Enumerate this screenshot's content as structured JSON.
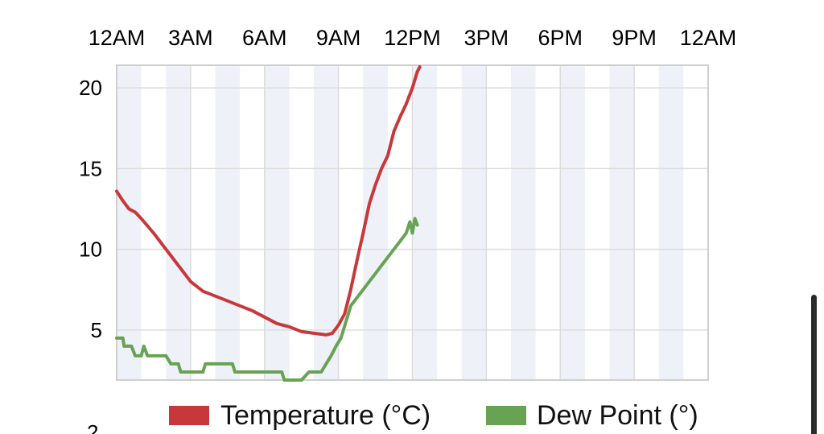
{
  "chart_data": {
    "type": "line",
    "x_tick_labels": [
      "12AM",
      "3AM",
      "6AM",
      "9AM",
      "12PM",
      "3PM",
      "6PM",
      "9PM",
      "12AM"
    ],
    "x_range_hours": [
      0,
      24
    ],
    "y_tick_labels": [
      "20",
      "15",
      "10",
      "5"
    ],
    "y_ticks": [
      20,
      15,
      10,
      5
    ],
    "ylim": [
      1.9,
      21.4
    ],
    "grid": true,
    "legend_placement": "bottom",
    "series": [
      {
        "name": "Temperature (°C)",
        "color": "#c8383a",
        "points": [
          [
            0.0,
            13.6
          ],
          [
            0.25,
            13.0
          ],
          [
            0.5,
            12.5
          ],
          [
            0.75,
            12.3
          ],
          [
            1.0,
            11.9
          ],
          [
            1.5,
            11.0
          ],
          [
            2.0,
            10.0
          ],
          [
            2.5,
            9.0
          ],
          [
            3.0,
            8.0
          ],
          [
            3.5,
            7.4
          ],
          [
            4.0,
            7.1
          ],
          [
            4.5,
            6.8
          ],
          [
            5.0,
            6.5
          ],
          [
            5.5,
            6.2
          ],
          [
            6.0,
            5.8
          ],
          [
            6.5,
            5.4
          ],
          [
            7.0,
            5.2
          ],
          [
            7.5,
            4.9
          ],
          [
            8.0,
            4.8
          ],
          [
            8.5,
            4.7
          ],
          [
            8.75,
            4.8
          ],
          [
            9.0,
            5.3
          ],
          [
            9.25,
            6.0
          ],
          [
            9.5,
            7.5
          ],
          [
            9.75,
            9.3
          ],
          [
            10.0,
            11.0
          ],
          [
            10.25,
            12.8
          ],
          [
            10.5,
            14.0
          ],
          [
            10.75,
            15.0
          ],
          [
            11.0,
            15.8
          ],
          [
            11.25,
            17.3
          ],
          [
            11.5,
            18.2
          ],
          [
            11.75,
            19.0
          ],
          [
            12.0,
            20.0
          ],
          [
            12.2,
            21.0
          ],
          [
            12.3,
            21.3
          ]
        ]
      },
      {
        "name": "Dew Point (°)",
        "color": "#67a353",
        "points": [
          [
            0.0,
            4.5
          ],
          [
            0.25,
            4.5
          ],
          [
            0.3,
            4.0
          ],
          [
            0.6,
            4.0
          ],
          [
            0.75,
            3.4
          ],
          [
            1.0,
            3.4
          ],
          [
            1.1,
            4.0
          ],
          [
            1.25,
            3.4
          ],
          [
            1.5,
            3.4
          ],
          [
            2.0,
            3.4
          ],
          [
            2.2,
            2.9
          ],
          [
            2.5,
            2.9
          ],
          [
            2.6,
            2.4
          ],
          [
            3.5,
            2.4
          ],
          [
            3.6,
            2.9
          ],
          [
            4.0,
            2.9
          ],
          [
            4.7,
            2.9
          ],
          [
            4.8,
            2.4
          ],
          [
            6.0,
            2.4
          ],
          [
            6.7,
            2.4
          ],
          [
            6.8,
            1.9
          ],
          [
            7.5,
            1.9
          ],
          [
            7.8,
            2.4
          ],
          [
            8.3,
            2.4
          ],
          [
            8.5,
            2.9
          ],
          [
            8.7,
            3.4
          ],
          [
            8.9,
            4.0
          ],
          [
            9.1,
            4.5
          ],
          [
            9.3,
            5.5
          ],
          [
            9.5,
            6.5
          ],
          [
            9.75,
            7.0
          ],
          [
            10.0,
            7.5
          ],
          [
            10.25,
            8.0
          ],
          [
            10.5,
            8.5
          ],
          [
            10.75,
            9.0
          ],
          [
            11.0,
            9.5
          ],
          [
            11.25,
            10.0
          ],
          [
            11.5,
            10.5
          ],
          [
            11.75,
            11.0
          ],
          [
            11.9,
            11.7
          ],
          [
            12.0,
            11.0
          ],
          [
            12.1,
            11.9
          ],
          [
            12.2,
            11.5
          ]
        ]
      }
    ]
  },
  "colors": {
    "band": "#eef1f8",
    "grid": "#dcdcdc",
    "frame": "#cfcfcf"
  }
}
